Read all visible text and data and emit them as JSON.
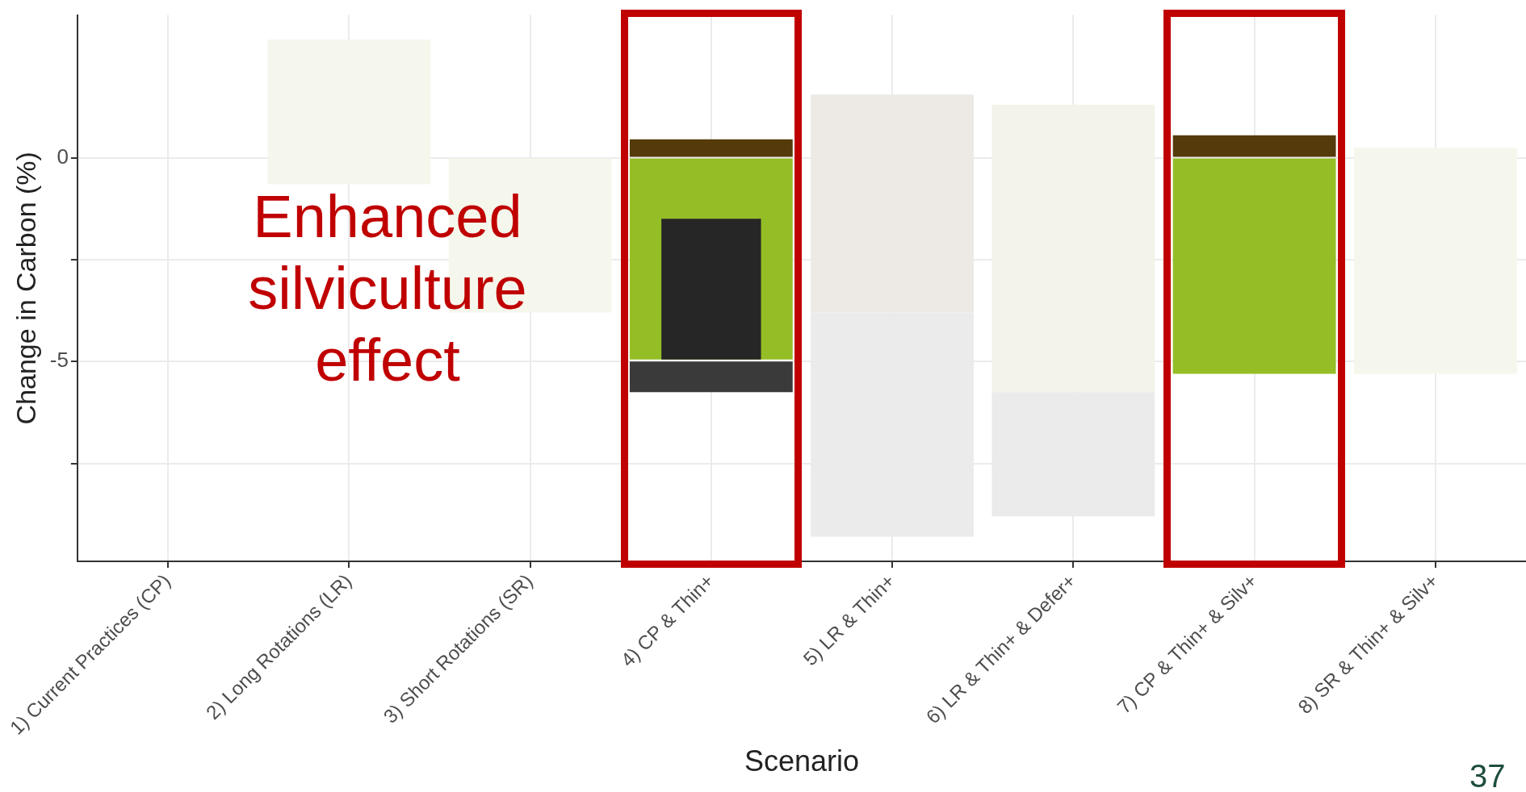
{
  "chart_data": {
    "type": "bar",
    "xlabel": "Scenario",
    "ylabel": "Change in Carbon (%)",
    "categories": [
      "1) Current Practices (CP)",
      "2) Long Rotations (LR)",
      "3) Short Rotations (SR)",
      "4) CP & Thin+",
      "5) LR & Thin+",
      "6) LR & Thin+ & Defer+",
      "7) CP & Thin+ & Silv+",
      "8) SR & Thin+ & Silv+"
    ],
    "ylim": [
      -9.9,
      3.5
    ],
    "yticks": [
      {
        "value": -7.5,
        "label": null
      },
      -5,
      {
        "value": -2.5,
        "label": null
      },
      0
    ],
    "grid": true,
    "legend": false,
    "series": [
      {
        "base": [
          null,
          -0.65,
          -3.8,
          -4.95,
          -3.8,
          -5.75,
          -5.3,
          -5.3
        ],
        "values": [
          null,
          3.55,
          3.8,
          4.95,
          5.35,
          7.05,
          5.3,
          5.55
        ],
        "colors": [
          "#f5f7ec",
          "#f5f7ec",
          "#f5f7ec",
          "#95bd26",
          "#edeae6",
          "#f3f3ea",
          "#95bd26",
          "#f5f7ec"
        ]
      },
      {
        "base": [
          null,
          null,
          null,
          0,
          null,
          null,
          0,
          null
        ],
        "values": [
          null,
          null,
          null,
          0.45,
          null,
          null,
          0.55,
          null
        ],
        "colors": [
          "#553a0b",
          "#553a0b",
          "#553a0b",
          "#553a0b",
          "#553a0b",
          "#553a0b",
          "#553a0b",
          "#553a0b"
        ]
      },
      {
        "base": [
          null,
          null,
          null,
          -5.75,
          -9.3,
          -8.8,
          null,
          null
        ],
        "values": [
          null,
          null,
          null,
          0.75,
          5.5,
          3.05,
          null,
          null
        ],
        "colors": [
          "#3a3a3a",
          "#3a3a3a",
          "#3a3a3a",
          "#3a3a3a",
          "#ebebeb",
          "#ebebeb",
          "#3a3a3a",
          "#3a3a3a"
        ]
      },
      {
        "base": [
          null,
          null,
          null,
          -4.95,
          null,
          null,
          null,
          null
        ],
        "values": [
          null,
          null,
          null,
          3.45,
          null,
          null,
          null,
          null
        ],
        "colors": [
          "#262626",
          "#262626",
          "#262626",
          "#262626",
          "#262626",
          "#262626",
          "#262626",
          "#262626"
        ]
      }
    ],
    "annotations": [
      "Enhanced silviculture effect",
      "37"
    ]
  }
}
